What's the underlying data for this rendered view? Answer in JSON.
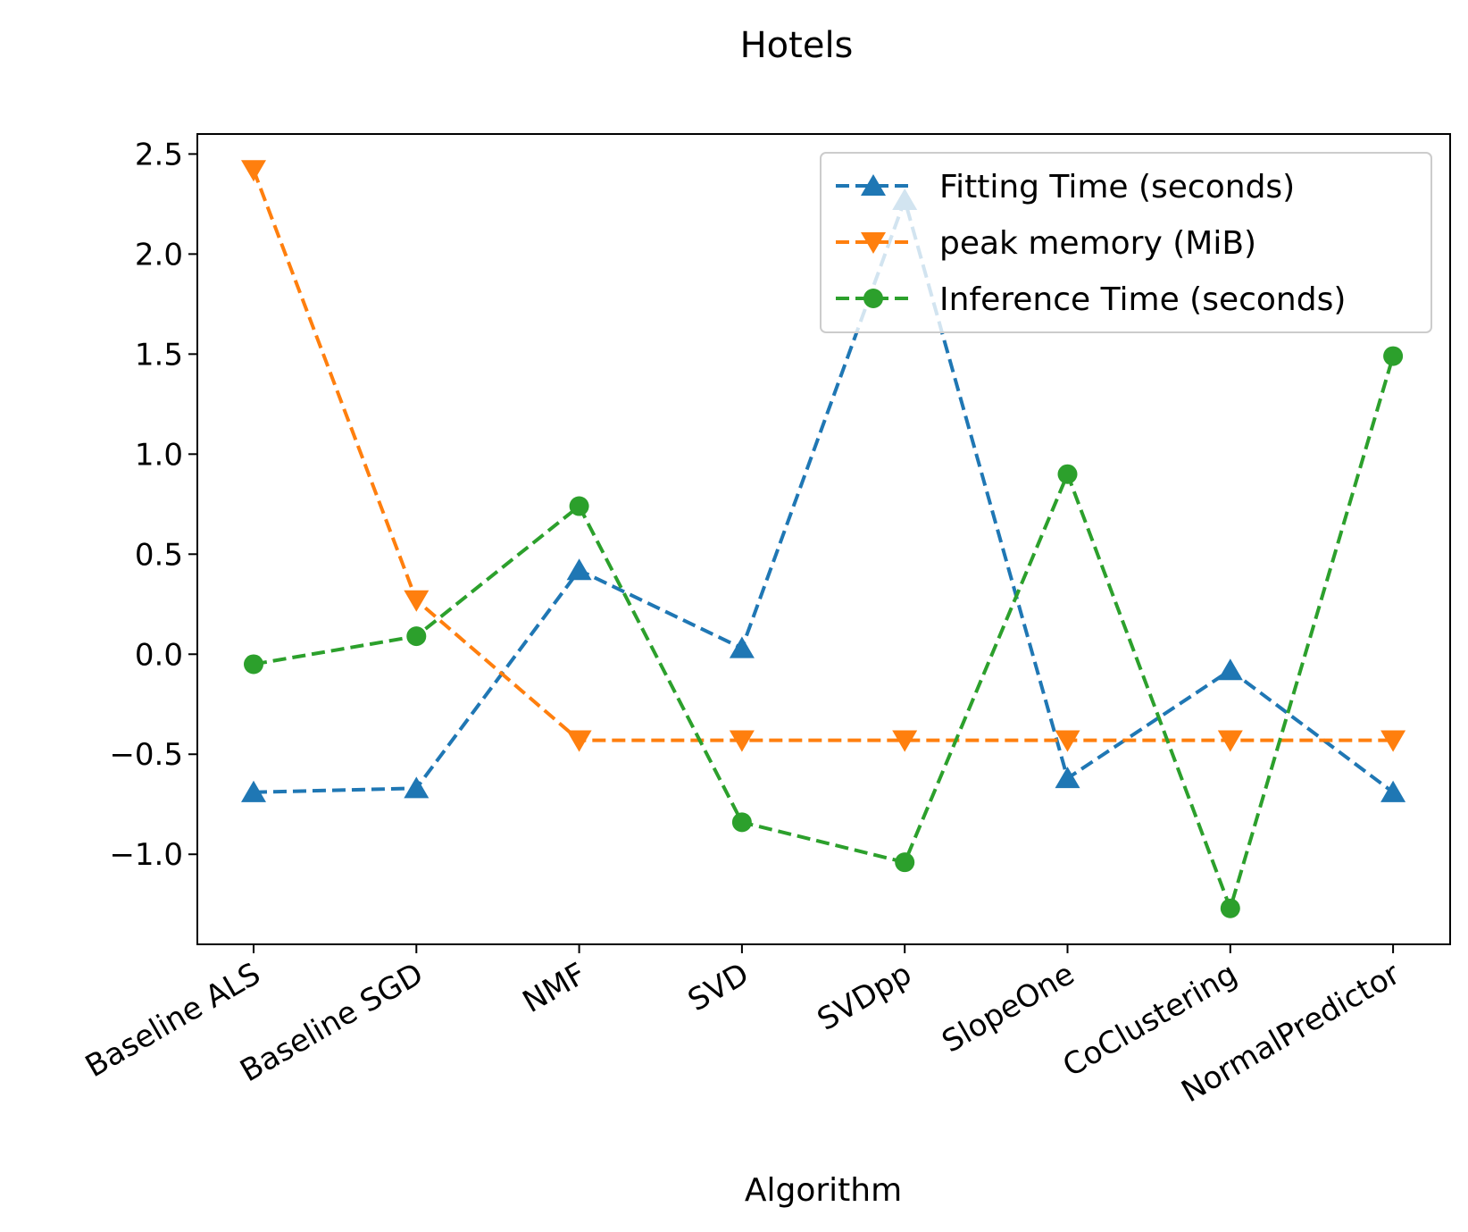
{
  "chart_data": {
    "type": "line",
    "title": "Hotels",
    "xlabel": "Algorithm",
    "ylabel": "",
    "categories": [
      "Baseline ALS",
      "Baseline SGD",
      "NMF",
      "SVD",
      "SVDpp",
      "SlopeOne",
      "CoClustering",
      "NormalPredictor"
    ],
    "ylim": [
      -1.45,
      2.6
    ],
    "yticks": [
      2.5,
      2.0,
      1.5,
      1.0,
      0.5,
      0.0,
      -0.5,
      -1.0
    ],
    "ytick_labels": [
      "2.5",
      "2.0",
      "1.5",
      "1.0",
      "0.5",
      "0.0",
      "−0.5",
      "−1.0"
    ],
    "grid": false,
    "legend_position": "top-right",
    "series": [
      {
        "name": "Fitting Time (seconds)",
        "color": "#1f77b4",
        "marker": "triangle-up",
        "values": [
          -0.69,
          -0.67,
          0.42,
          0.03,
          2.27,
          -0.62,
          -0.08,
          -0.69
        ]
      },
      {
        "name": "peak memory (MiB)",
        "color": "#ff7f0e",
        "marker": "triangle-down",
        "values": [
          2.42,
          0.27,
          -0.43,
          -0.43,
          -0.43,
          -0.43,
          -0.43,
          -0.43
        ]
      },
      {
        "name": "Inference Time (seconds)",
        "color": "#2ca02c",
        "marker": "circle",
        "values": [
          -0.05,
          0.09,
          0.74,
          -0.84,
          -1.04,
          0.9,
          -1.27,
          1.49
        ]
      }
    ]
  }
}
